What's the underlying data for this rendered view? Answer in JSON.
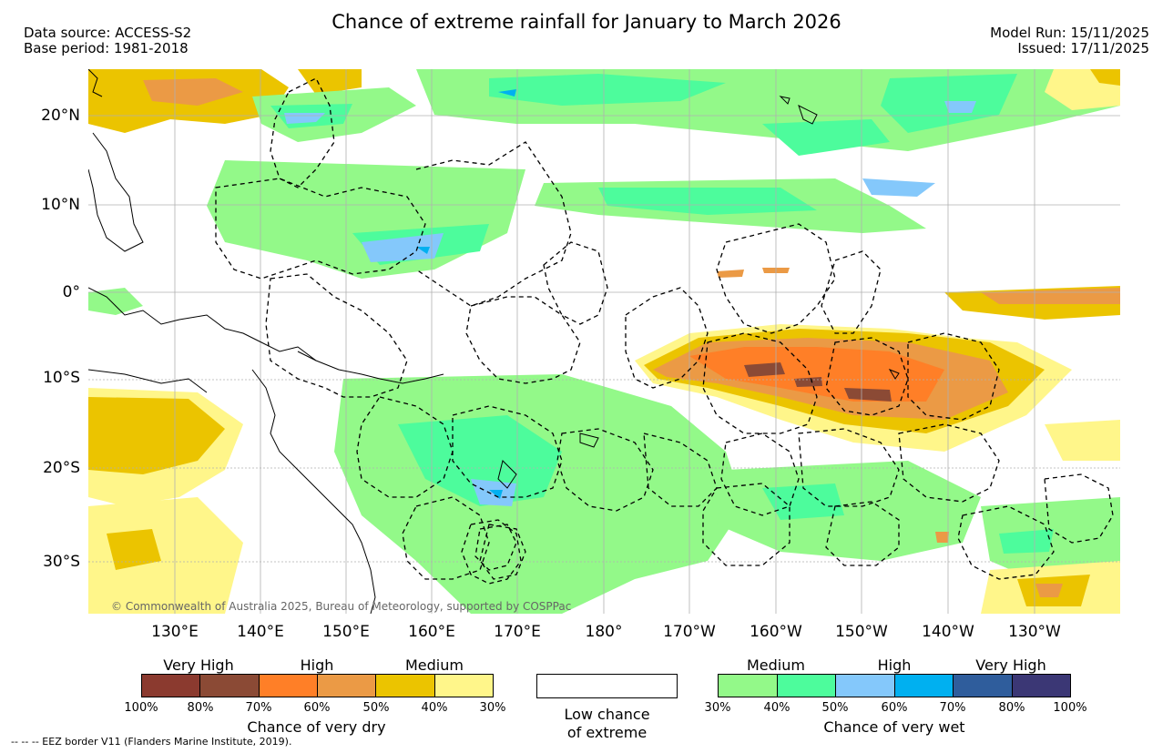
{
  "title": "Chance of extreme rainfall for January to March 2026",
  "data_source": "Data source: ACCESS-S2",
  "base_period": "Base period: 1981-2018",
  "model_run": "Model Run: 15/11/2025",
  "issued": "Issued: 17/11/2025",
  "lat_labels": [
    "20°N",
    "10°N",
    "0°",
    "10°S",
    "20°S",
    "30°S"
  ],
  "lon_labels": [
    "130°E",
    "140°E",
    "150°E",
    "160°E",
    "170°E",
    "180°",
    "170°W",
    "160°W",
    "150°W",
    "140°W",
    "130°W"
  ],
  "map_copyright": "© Commonwealth of Australia 2025, Bureau of Meteorology, supported by COSPPac",
  "eez_note": "-- -- -- EEZ border V11 (Flanders Marine Institute, 2019).",
  "legend_dry": {
    "headers": [
      "Very High",
      "High",
      "Medium"
    ],
    "colors": [
      "#8b3a2f",
      "#8b4a35",
      "#ff7f27",
      "#eb9a45",
      "#ebc400",
      "#fff68a"
    ],
    "ticks": [
      "100%",
      "80%",
      "70%",
      "60%",
      "50%",
      "40%",
      "30%"
    ],
    "title": "Chance of very dry"
  },
  "legend_low": {
    "line1": "Low chance",
    "line2": "of extreme"
  },
  "legend_wet": {
    "headers": [
      "Medium",
      "High",
      "Very High"
    ],
    "colors": [
      "#93f989",
      "#4dfc9c",
      "#84c8fb",
      "#00b0f0",
      "#2f5d9c",
      "#3b3775"
    ],
    "ticks": [
      "30%",
      "40%",
      "50%",
      "60%",
      "70%",
      "80%",
      "100%"
    ],
    "title": "Chance of very wet"
  },
  "colors": {
    "land_outline": "#000000",
    "eez_border": "#000000",
    "grid": "#b0b0b0"
  }
}
